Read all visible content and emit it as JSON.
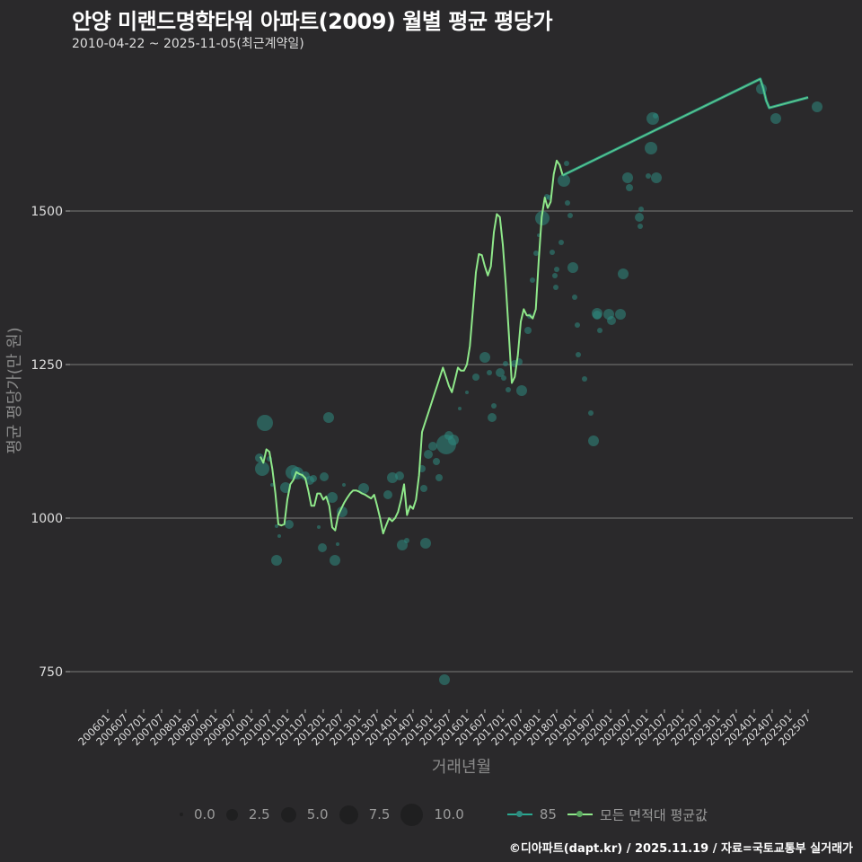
{
  "header": {
    "title": "안양 미랜드명학타워 아파트(2009) 월별 평균 평당가",
    "subtitle": "2010-04-22 ~ 2025-11-05(최근계약일)"
  },
  "caption": "©디아파트(dapt.kr) / 2025.11.19 / 자료=국토교통부 실거래가",
  "colors": {
    "background": "#2a292b",
    "grid": "#7a7a7a",
    "points_85": "#2e8b80",
    "line_85": "#2aa890",
    "line_avg": "#8fe88a"
  },
  "legend": {
    "size_title": "",
    "sizes": [
      {
        "label": "0.0",
        "d": 4
      },
      {
        "label": "2.5",
        "d": 13
      },
      {
        "label": "5.0",
        "d": 17
      },
      {
        "label": "7.5",
        "d": 21
      },
      {
        "label": "10.0",
        "d": 25
      }
    ],
    "series": [
      {
        "label": "85",
        "color": "#2aa890"
      },
      {
        "label": "모든 면적대 평균값",
        "color": "#8fe88a"
      }
    ]
  },
  "chart_data": {
    "type": "scatter+line",
    "title": "안양 미랜드명학타워 아파트(2009) 월별 평균 평당가",
    "subtitle": "2010-04-22 ~ 2025-11-05(최근계약일)",
    "xlabel": "거래년월",
    "ylabel": "평균 평당가(만 원)",
    "ylim": [
      700,
      1760
    ],
    "yticks": [
      750,
      1000,
      1250,
      1500
    ],
    "xticks": [
      "200601",
      "200607",
      "200701",
      "200707",
      "200801",
      "200807",
      "200901",
      "200907",
      "201001",
      "201007",
      "201101",
      "201107",
      "201201",
      "201207",
      "201301",
      "201307",
      "201401",
      "201407",
      "201501",
      "201507",
      "201601",
      "201607",
      "201701",
      "201707",
      "201801",
      "201807",
      "201901",
      "201907",
      "202001",
      "202007",
      "202101",
      "202107",
      "202201",
      "202207",
      "202301",
      "202307",
      "202401",
      "202407",
      "202501",
      "202507"
    ],
    "grid": true,
    "legend_position": "bottom",
    "series": [
      {
        "name": "모든 면적대 평균값",
        "kind": "line",
        "points": [
          [
            "201004",
            1100
          ],
          [
            "201005",
            1090
          ],
          [
            "201006",
            1112
          ],
          [
            "201007",
            1108
          ],
          [
            "201008",
            1080
          ],
          [
            "201009",
            1040
          ],
          [
            "201010",
            990
          ],
          [
            "201011",
            988
          ],
          [
            "201012",
            990
          ],
          [
            "201101",
            1030
          ],
          [
            "201102",
            1055
          ],
          [
            "201103",
            1062
          ],
          [
            "201104",
            1075
          ],
          [
            "201105",
            1072
          ],
          [
            "201106",
            1070
          ],
          [
            "201107",
            1065
          ],
          [
            "201108",
            1045
          ],
          [
            "201109",
            1020
          ],
          [
            "201110",
            1020
          ],
          [
            "201111",
            1040
          ],
          [
            "201112",
            1040
          ],
          [
            "201201",
            1030
          ],
          [
            "201202",
            1035
          ],
          [
            "201203",
            1020
          ],
          [
            "201204",
            985
          ],
          [
            "201205",
            980
          ],
          [
            "201206",
            1005
          ],
          [
            "201207",
            1015
          ],
          [
            "201208",
            1025
          ],
          [
            "201209",
            1033
          ],
          [
            "201210",
            1040
          ],
          [
            "201211",
            1045
          ],
          [
            "201212",
            1045
          ],
          [
            "201301",
            1043
          ],
          [
            "201302",
            1040
          ],
          [
            "201303",
            1038
          ],
          [
            "201304",
            1035
          ],
          [
            "201305",
            1032
          ],
          [
            "201306",
            1038
          ],
          [
            "201307",
            1020
          ],
          [
            "201308",
            1000
          ],
          [
            "201309",
            975
          ],
          [
            "201310",
            988
          ],
          [
            "201311",
            1000
          ],
          [
            "201312",
            995
          ],
          [
            "201401",
            1000
          ],
          [
            "201402",
            1010
          ],
          [
            "201403",
            1030
          ],
          [
            "201404",
            1055
          ],
          [
            "201405",
            1005
          ],
          [
            "201406",
            1020
          ],
          [
            "201407",
            1015
          ],
          [
            "201408",
            1030
          ],
          [
            "201409",
            1070
          ],
          [
            "201410",
            1140
          ],
          [
            "201411",
            1155
          ],
          [
            "201412",
            1170
          ],
          [
            "201501",
            1185
          ],
          [
            "201502",
            1200
          ],
          [
            "201503",
            1215
          ],
          [
            "201504",
            1230
          ],
          [
            "201505",
            1245
          ],
          [
            "201506",
            1230
          ],
          [
            "201507",
            1215
          ],
          [
            "201508",
            1205
          ],
          [
            "201509",
            1225
          ],
          [
            "201510",
            1245
          ],
          [
            "201511",
            1240
          ],
          [
            "201512",
            1240
          ],
          [
            "201601",
            1250
          ],
          [
            "201602",
            1280
          ],
          [
            "201603",
            1340
          ],
          [
            "201604",
            1400
          ],
          [
            "201605",
            1430
          ],
          [
            "201606",
            1428
          ],
          [
            "201607",
            1410
          ],
          [
            "201608",
            1395
          ],
          [
            "201609",
            1410
          ],
          [
            "201610",
            1465
          ],
          [
            "201611",
            1495
          ],
          [
            "201612",
            1490
          ],
          [
            "201701",
            1445
          ],
          [
            "201702",
            1380
          ],
          [
            "201703",
            1300
          ],
          [
            "201704",
            1220
          ],
          [
            "201705",
            1230
          ],
          [
            "201706",
            1265
          ],
          [
            "201707",
            1320
          ],
          [
            "201708",
            1340
          ],
          [
            "201709",
            1330
          ],
          [
            "201710",
            1330
          ],
          [
            "201711",
            1325
          ],
          [
            "201712",
            1340
          ],
          [
            "201801",
            1420
          ],
          [
            "201802",
            1490
          ],
          [
            "201803",
            1522
          ],
          [
            "201804",
            1505
          ],
          [
            "201805",
            1515
          ],
          [
            "201806",
            1560
          ],
          [
            "201807",
            1582
          ],
          [
            "201808",
            1575
          ],
          [
            "201809",
            1558
          ],
          [
            "202403",
            1715
          ],
          [
            "202404",
            1700
          ],
          [
            "202405",
            1680
          ],
          [
            "202406",
            1668
          ],
          [
            "202507",
            1685
          ]
        ]
      },
      {
        "name": "85",
        "kind": "scatter",
        "points": []
      }
    ]
  }
}
